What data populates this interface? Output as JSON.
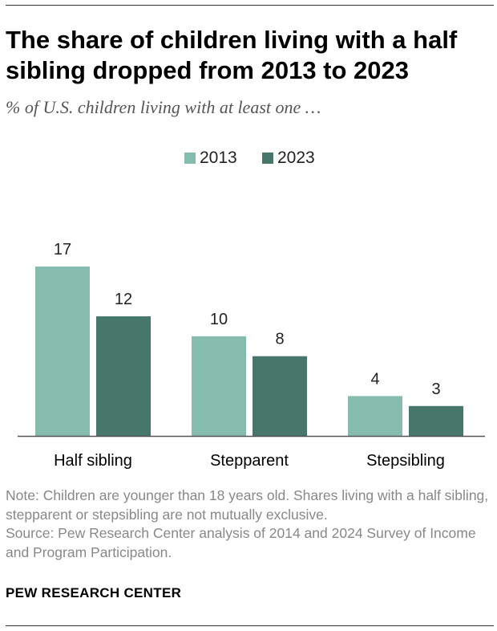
{
  "header": {
    "title": "The share of children living with a half sibling dropped from 2013 to 2023",
    "subtitle": "% of U.S. children living with at least one …"
  },
  "colors": {
    "series_2013": "#86bcae",
    "series_2023": "#46776a",
    "axis": "#555555"
  },
  "chart_data": {
    "type": "bar",
    "categories": [
      "Half sibling",
      "Stepparent",
      "Stepsibling"
    ],
    "series": [
      {
        "name": "2013",
        "values": [
          17,
          10,
          4
        ]
      },
      {
        "name": "2023",
        "values": [
          12,
          8,
          3
        ]
      }
    ],
    "ylim": [
      0,
      17
    ],
    "grid": false,
    "legend": "top-center"
  },
  "footer": {
    "note": "Note: Children are younger than 18 years old. Shares living with a half sibling, stepparent or stepsibling are not mutually exclusive.",
    "source": "Source: Pew Research Center analysis of 2014 and 2024 Survey of Income and Program Participation.",
    "org": "PEW RESEARCH CENTER"
  }
}
